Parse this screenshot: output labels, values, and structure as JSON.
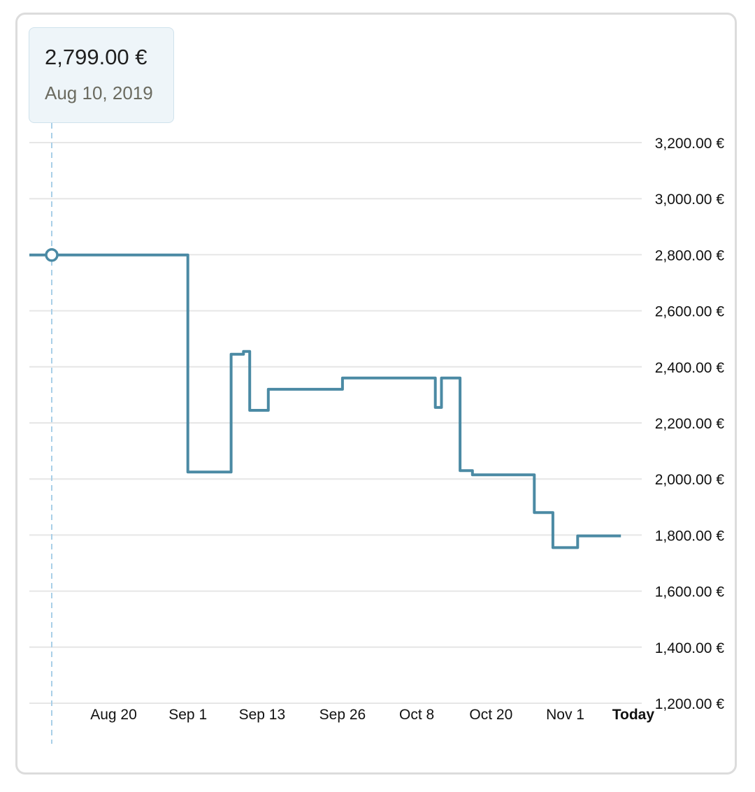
{
  "tooltip": {
    "price": "2,799.00 €",
    "date": "Aug 10, 2019"
  },
  "colors": {
    "line": "#4b8aa4",
    "grid": "#e6e6e6",
    "crosshair": "#a9cfe8",
    "tooltip_bg": "#eef5f9"
  },
  "chart_data": {
    "type": "line",
    "step": true,
    "x_unit": "days (Aug 10, 2019 = day 0)",
    "ylim": [
      1200,
      3200
    ],
    "y_ticks": [
      3200,
      3000,
      2800,
      2600,
      2400,
      2200,
      2000,
      1800,
      1600,
      1400,
      1200
    ],
    "y_tick_labels": [
      "3,200.00 €",
      "3,000.00 €",
      "2,800.00 €",
      "2,600.00 €",
      "2,400.00 €",
      "2,200.00 €",
      "2,000.00 €",
      "1,800.00 €",
      "1,600.00 €",
      "1,400.00 €",
      "1,200.00 €"
    ],
    "x_ticks": [
      {
        "label": "Aug 20",
        "date": "2019-08-20",
        "bold": false
      },
      {
        "label": "Sep 1",
        "date": "2019-09-01",
        "bold": false
      },
      {
        "label": "Sep 13",
        "date": "2019-09-13",
        "bold": false
      },
      {
        "label": "Sep 26",
        "date": "2019-09-26",
        "bold": false
      },
      {
        "label": "Oct 8",
        "date": "2019-10-08",
        "bold": false
      },
      {
        "label": "Oct 20",
        "date": "2019-10-20",
        "bold": false
      },
      {
        "label": "Nov 1",
        "date": "2019-11-01",
        "bold": false
      },
      {
        "label": "Today",
        "date": "2019-11-12",
        "bold": true
      }
    ],
    "highlight": {
      "date": "2019-08-10",
      "value": 2799
    },
    "series": [
      {
        "points": [
          {
            "date": "2019-08-07",
            "value": 2799
          },
          {
            "date": "2019-09-01",
            "value": 2025
          },
          {
            "date": "2019-09-08",
            "value": 2445
          },
          {
            "date": "2019-09-10",
            "value": 2455
          },
          {
            "date": "2019-09-11",
            "value": 2245
          },
          {
            "date": "2019-09-14",
            "value": 2320
          },
          {
            "date": "2019-09-26",
            "value": 2360
          },
          {
            "date": "2019-10-11",
            "value": 2255
          },
          {
            "date": "2019-10-12",
            "value": 2360
          },
          {
            "date": "2019-10-15",
            "value": 2030
          },
          {
            "date": "2019-10-17",
            "value": 2015
          },
          {
            "date": "2019-10-27",
            "value": 1880
          },
          {
            "date": "2019-10-30",
            "value": 1755
          },
          {
            "date": "2019-11-03",
            "value": 1797
          },
          {
            "date": "2019-11-10",
            "value": 1797
          }
        ]
      }
    ]
  }
}
